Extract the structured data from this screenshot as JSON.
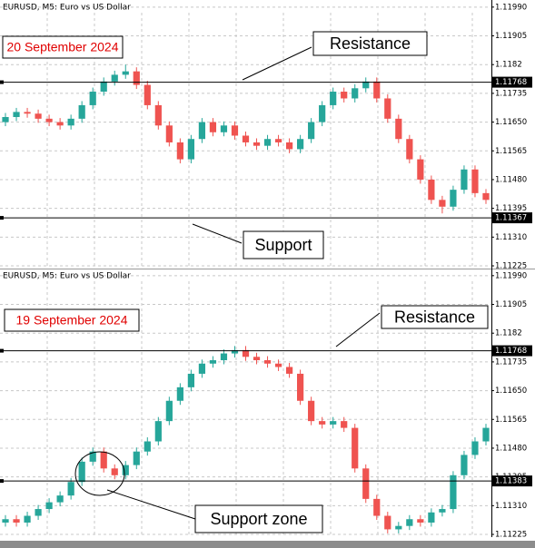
{
  "chart_data": [
    {
      "type": "candlestick",
      "title": "EURUSD, M5:  Euro vs US Dollar",
      "annotations": [
        "20 September 2024",
        "Resistance",
        "Support"
      ],
      "levels": [
        1.11768,
        1.11367
      ],
      "up_color": "#26a69a",
      "down_color": "#ef5350",
      "grid": true,
      "ylim": [
        1.11217,
        1.12011
      ],
      "yticks": [
        {
          "value": 1.1199,
          "label": "1.11990"
        },
        1.11905,
        1.1182,
        1.11735,
        {
          "value": 1.1165,
          "label": "1.11650"
        },
        1.11565,
        {
          "value": 1.1148,
          "label": "1.11480"
        },
        1.11395,
        {
          "value": 1.1131,
          "label": "1.11310"
        },
        1.11225
      ],
      "open": [
        1.1165,
        1.11665,
        1.1168,
        1.11675,
        1.1166,
        1.1165,
        1.1164,
        1.1166,
        1.117,
        1.1174,
        1.1177,
        1.1179,
        1.118,
        1.1176,
        1.117,
        1.1164,
        1.1159,
        1.1154,
        1.116,
        1.1165,
        1.1162,
        1.1164,
        1.1161,
        1.1159,
        1.1158,
        1.116,
        1.1159,
        1.1157,
        1.116,
        1.1165,
        1.117,
        1.1174,
        1.1172,
        1.1175,
        1.1177,
        1.1172,
        1.1166,
        1.116,
        1.1154,
        1.1148,
        1.1142,
        1.114,
        1.1145,
        1.1151,
        1.1144
      ],
      "high": [
        1.11677,
        1.11692,
        1.11692,
        1.11687,
        1.11672,
        1.11662,
        1.11672,
        1.11712,
        1.11752,
        1.11782,
        1.11802,
        1.1182,
        1.11812,
        1.11772,
        1.11712,
        1.11652,
        1.11602,
        1.11612,
        1.11662,
        1.11662,
        1.11652,
        1.11652,
        1.11622,
        1.11602,
        1.11612,
        1.11612,
        1.11602,
        1.11612,
        1.11662,
        1.11712,
        1.11752,
        1.11752,
        1.11762,
        1.11782,
        1.11782,
        1.11732,
        1.11672,
        1.11612,
        1.11552,
        1.11492,
        1.11432,
        1.11462,
        1.11522,
        1.11522,
        1.11452
      ],
      "low": [
        1.11638,
        1.11653,
        1.11663,
        1.11648,
        1.11638,
        1.11628,
        1.11628,
        1.11648,
        1.11688,
        1.11728,
        1.11758,
        1.11778,
        1.11748,
        1.11688,
        1.11628,
        1.11578,
        1.11528,
        1.11528,
        1.11588,
        1.11608,
        1.11608,
        1.11598,
        1.11578,
        1.11568,
        1.11568,
        1.11578,
        1.11558,
        1.11558,
        1.11588,
        1.11638,
        1.11688,
        1.11708,
        1.11708,
        1.11738,
        1.11708,
        1.11648,
        1.11588,
        1.11528,
        1.11468,
        1.11408,
        1.1138,
        1.11388,
        1.11438,
        1.11428,
        1.11408
      ],
      "close": [
        1.11665,
        1.1168,
        1.11675,
        1.1166,
        1.1165,
        1.1164,
        1.1166,
        1.117,
        1.1174,
        1.1177,
        1.1179,
        1.118,
        1.1176,
        1.117,
        1.1164,
        1.1159,
        1.1154,
        1.116,
        1.1165,
        1.1162,
        1.1164,
        1.1161,
        1.1159,
        1.1158,
        1.116,
        1.1159,
        1.1157,
        1.116,
        1.1165,
        1.117,
        1.1174,
        1.1172,
        1.1175,
        1.1177,
        1.1172,
        1.1166,
        1.116,
        1.1154,
        1.1148,
        1.1142,
        1.114,
        1.1145,
        1.1151,
        1.1144,
        1.1142
      ]
    },
    {
      "type": "candlestick",
      "title": "EURUSD, M5:  Euro vs US Dollar",
      "annotations": [
        "19 September 2024",
        "Resistance",
        "Support zone"
      ],
      "levels": [
        1.11768,
        1.11383
      ],
      "up_color": "#26a69a",
      "down_color": "#ef5350",
      "grid": true,
      "ylim": [
        1.11217,
        1.12011
      ],
      "yticks": [
        {
          "value": 1.1199,
          "label": "1.11990"
        },
        1.11905,
        1.1182,
        1.11735,
        {
          "value": 1.1165,
          "label": "1.11650"
        },
        1.11565,
        {
          "value": 1.1148,
          "label": "1.11480"
        },
        1.11395,
        {
          "value": 1.1131,
          "label": "1.11310"
        },
        1.11225
      ],
      "open": [
        1.1126,
        1.1127,
        1.1126,
        1.1128,
        1.113,
        1.1132,
        1.1134,
        1.1138,
        1.1144,
        1.1147,
        1.1142,
        1.114,
        1.1143,
        1.1147,
        1.115,
        1.1156,
        1.1162,
        1.1166,
        1.117,
        1.1173,
        1.1174,
        1.1176,
        1.1177,
        1.1175,
        1.1174,
        1.1173,
        1.1172,
        1.117,
        1.1162,
        1.1156,
        1.1155,
        1.1156,
        1.1154,
        1.1142,
        1.1133,
        1.1128,
        1.1124,
        1.1125,
        1.1127,
        1.1126,
        1.1129,
        1.113,
        1.114,
        1.1146,
        1.115
      ],
      "high": [
        1.11282,
        1.11282,
        1.11292,
        1.11312,
        1.11332,
        1.11352,
        1.11392,
        1.11452,
        1.11482,
        1.11482,
        1.11432,
        1.11442,
        1.11482,
        1.11512,
        1.11572,
        1.11632,
        1.11672,
        1.11712,
        1.11742,
        1.11752,
        1.11772,
        1.11782,
        1.11782,
        1.11762,
        1.11752,
        1.11742,
        1.11732,
        1.11712,
        1.11632,
        1.11572,
        1.11572,
        1.11572,
        1.11552,
        1.11432,
        1.11342,
        1.11292,
        1.11262,
        1.11282,
        1.11282,
        1.11302,
        1.11312,
        1.11412,
        1.11472,
        1.11512,
        1.11552
      ],
      "low": [
        1.11248,
        1.11248,
        1.11248,
        1.11268,
        1.11288,
        1.11308,
        1.11328,
        1.11368,
        1.11428,
        1.11408,
        1.11388,
        1.11388,
        1.11418,
        1.11458,
        1.11488,
        1.11548,
        1.11608,
        1.11648,
        1.11688,
        1.11718,
        1.11728,
        1.11748,
        1.11738,
        1.11728,
        1.11718,
        1.11708,
        1.11688,
        1.11608,
        1.11548,
        1.11538,
        1.11538,
        1.11528,
        1.11408,
        1.11318,
        1.11268,
        1.11228,
        1.11228,
        1.11238,
        1.11248,
        1.11248,
        1.11278,
        1.11288,
        1.11388,
        1.11448,
        1.11488
      ],
      "close": [
        1.1127,
        1.1126,
        1.1128,
        1.113,
        1.1132,
        1.1134,
        1.1138,
        1.1144,
        1.1147,
        1.1142,
        1.114,
        1.1143,
        1.1147,
        1.115,
        1.1156,
        1.1162,
        1.1166,
        1.117,
        1.1173,
        1.1174,
        1.1176,
        1.1177,
        1.1175,
        1.1174,
        1.1173,
        1.1172,
        1.117,
        1.1162,
        1.1156,
        1.1155,
        1.1156,
        1.1154,
        1.1142,
        1.1133,
        1.1128,
        1.1124,
        1.1125,
        1.1127,
        1.1126,
        1.1129,
        1.113,
        1.114,
        1.1146,
        1.115,
        1.1154
      ]
    }
  ]
}
